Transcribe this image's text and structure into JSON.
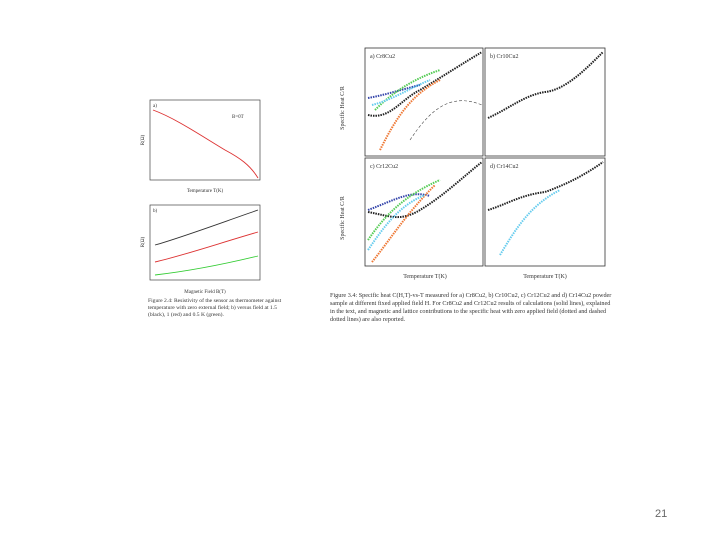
{
  "left_figure": {
    "panel_a": {
      "label": "a)",
      "annotation": "B=0T",
      "xlabel": "Temperature T(K)",
      "ylabel": "R(Ω)"
    },
    "panel_b": {
      "label": "b)",
      "xlabel": "Magnetic Field B(T)",
      "ylabel": "R(Ω)"
    },
    "caption": "Figure 2.4: Resistivity of the sensor as thermometer against temperature with zero external field; b) versus field at 1.5 (black), 1 (red) and 0.5 K (green)."
  },
  "right_figure": {
    "panels": [
      "a) Cr8Cu2",
      "b) Cr10Cu2",
      "c) Cr12Cu2",
      "d) Cr14Cu2"
    ],
    "ylabel": "Specific Heat C/R",
    "xlabel": "Temperature T(K)",
    "caption": "Figure 3.4: Specific heat C(H,T)-vs-T measured for a) Cr8Cu2, b) Cr10Cu2, c) Cr12Cu2 and d) Cr14Cu2 powder sample at different fixed applied field H. For Cr8Cu2 and Cr12Cu2 results of calculations (solid lines), explained in the text, and magnetic and lattice contributions to the specific heat with zero applied field (dotted and dashed dotted lines) are also reported."
  },
  "page_number": "21"
}
